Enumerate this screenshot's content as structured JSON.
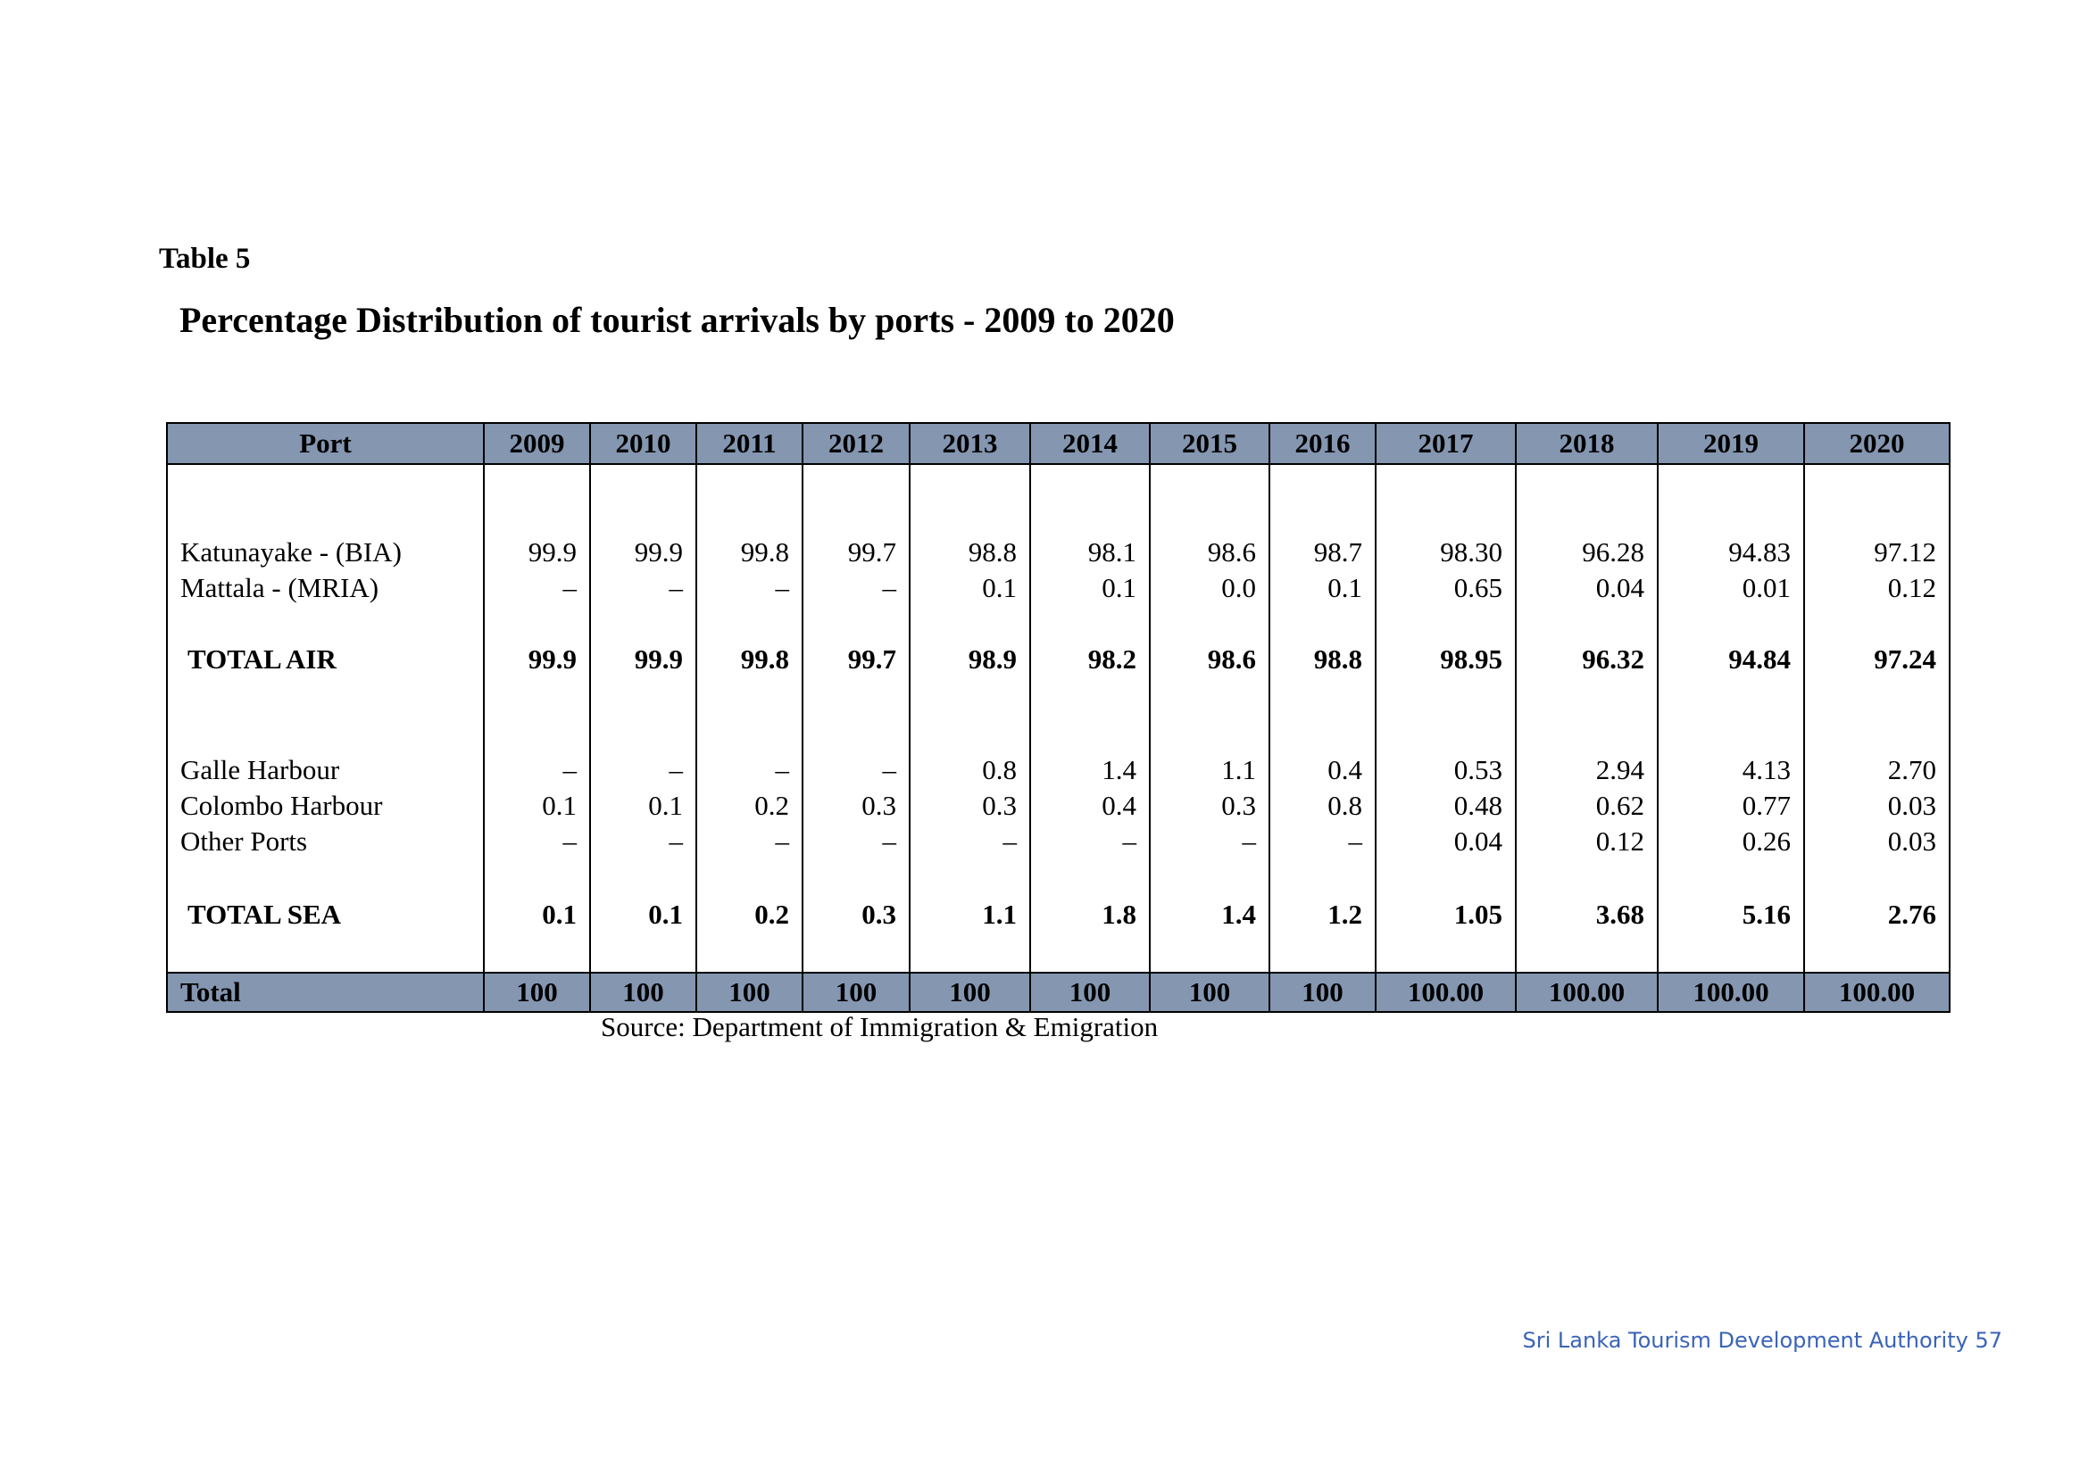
{
  "label": "Table 5",
  "title": "Percentage Distribution of tourist arrivals by ports - 2009 to 2020",
  "columns": [
    "Port",
    "2009",
    "2010",
    "2011",
    "2012",
    "2013",
    "2014",
    "2015",
    "2016",
    "2017",
    "2018",
    "2019",
    "2020"
  ],
  "rows": {
    "katunayake": [
      "Katunayake - (BIA)",
      "99.9",
      "99.9",
      "99.8",
      "99.7",
      "98.8",
      "98.1",
      "98.6",
      "98.7",
      "98.30",
      "96.28",
      "94.83",
      "97.12"
    ],
    "mattala": [
      "Mattala - (MRIA)",
      "–",
      "–",
      "–",
      "–",
      "0.1",
      "0.1",
      "0.0",
      "0.1",
      "0.65",
      "0.04",
      "0.01",
      "0.12"
    ],
    "total_air": [
      "TOTAL AIR",
      "99.9",
      "99.9",
      "99.8",
      "99.7",
      "98.9",
      "98.2",
      "98.6",
      "98.8",
      "98.95",
      "96.32",
      "94.84",
      "97.24"
    ],
    "galle": [
      "Galle Harbour",
      "–",
      "–",
      "–",
      "–",
      "0.8",
      "1.4",
      "1.1",
      "0.4",
      "0.53",
      "2.94",
      "4.13",
      "2.70"
    ],
    "colombo": [
      "Colombo Harbour",
      "0.1",
      "0.1",
      "0.2",
      "0.3",
      "0.3",
      "0.4",
      "0.3",
      "0.8",
      "0.48",
      "0.62",
      "0.77",
      "0.03"
    ],
    "other": [
      "Other Ports",
      "–",
      "–",
      "–",
      "–",
      "–",
      "–",
      "–",
      "–",
      "0.04",
      "0.12",
      "0.26",
      "0.03"
    ],
    "total_sea": [
      "TOTAL SEA",
      "0.1",
      "0.1",
      "0.2",
      "0.3",
      "1.1",
      "1.8",
      "1.4",
      "1.2",
      "1.05",
      "3.68",
      "5.16",
      "2.76"
    ],
    "total": [
      "Total",
      "100",
      "100",
      "100",
      "100",
      "100",
      "100",
      "100",
      "100",
      "100.00",
      "100.00",
      "100.00",
      "100.00"
    ]
  },
  "source": "Source: Department of Immigration & Emigration",
  "footer": "Sri Lanka Tourism Development Authority 57"
}
